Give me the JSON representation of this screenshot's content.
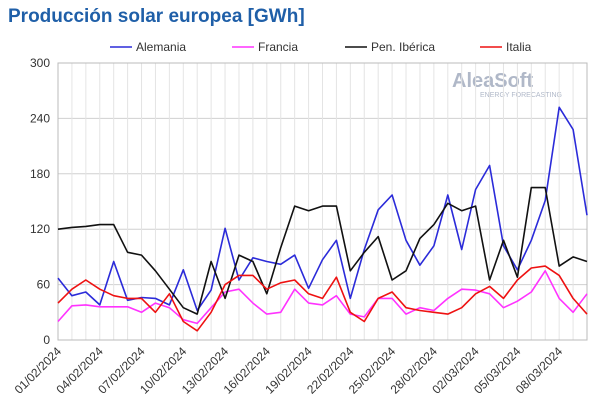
{
  "chart_data": {
    "type": "line",
    "title": "Producción solar europea [GWh]",
    "logo": {
      "name": "AleaSoft",
      "tagline": "ENERGY FORECASTING"
    },
    "categories": [
      "01/02/2024",
      null,
      null,
      "04/02/2024",
      null,
      null,
      "07/02/2024",
      null,
      null,
      "10/02/2024",
      null,
      null,
      "13/02/2024",
      null,
      null,
      "16/02/2024",
      null,
      null,
      "19/02/2024",
      null,
      null,
      "22/02/2024",
      null,
      null,
      "25/02/2024",
      null,
      null,
      "28/02/2024",
      null,
      null,
      "02/03/2024",
      null,
      null,
      "05/03/2024",
      null,
      null,
      "08/03/2024",
      null,
      null
    ],
    "series": [
      {
        "name": "Alemania",
        "color": "#2b2bd9",
        "values": [
          67,
          48,
          52,
          38,
          85,
          43,
          46,
          45,
          38,
          76,
          32,
          54,
          121,
          65,
          89,
          85,
          82,
          92,
          56,
          87,
          108,
          45,
          98,
          141,
          157,
          108,
          81,
          102,
          157,
          98,
          163,
          189,
          102,
          76,
          108,
          151,
          252,
          228,
          135
        ]
      },
      {
        "name": "Francia",
        "color": "#ff33ff",
        "values": [
          20,
          37,
          38,
          36,
          36,
          36,
          30,
          40,
          35,
          22,
          18,
          35,
          52,
          55,
          40,
          28,
          30,
          55,
          40,
          38,
          48,
          28,
          25,
          45,
          45,
          28,
          35,
          32,
          45,
          55,
          54,
          50,
          35,
          42,
          52,
          75,
          45,
          30,
          50
        ]
      },
      {
        "name": "Pen. Ibérica",
        "color": "#111111",
        "values": [
          120,
          122,
          123,
          125,
          125,
          95,
          92,
          75,
          55,
          35,
          28,
          85,
          45,
          92,
          85,
          50,
          100,
          145,
          140,
          145,
          145,
          75,
          95,
          112,
          65,
          75,
          110,
          125,
          148,
          140,
          145,
          65,
          108,
          68,
          165,
          165,
          80,
          90,
          85
        ]
      },
      {
        "name": "Italia",
        "color": "#ee1111",
        "values": [
          40,
          55,
          65,
          55,
          48,
          45,
          45,
          30,
          50,
          20,
          10,
          30,
          60,
          70,
          70,
          55,
          62,
          65,
          50,
          45,
          68,
          30,
          20,
          45,
          52,
          35,
          32,
          30,
          28,
          35,
          50,
          58,
          45,
          65,
          78,
          80,
          70,
          45,
          28
        ]
      }
    ],
    "ylim": [
      0,
      300
    ],
    "yticks": [
      0,
      60,
      120,
      180,
      240,
      300
    ],
    "grid": true
  }
}
